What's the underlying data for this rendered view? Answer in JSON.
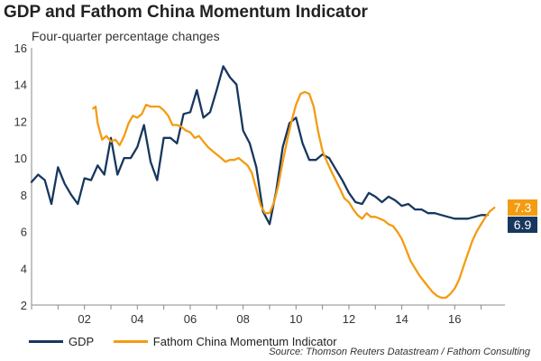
{
  "chart_data": {
    "type": "line",
    "title": "GDP and Fathom China Momentum Indicator",
    "subtitle": "Four-quarter percentage changes",
    "xlim": [
      2000.0,
      2017.9
    ],
    "ylim": [
      2,
      16
    ],
    "x_ticks": [
      {
        "x": 2002.0,
        "label": "02"
      },
      {
        "x": 2004.0,
        "label": "04"
      },
      {
        "x": 2006.0,
        "label": "06"
      },
      {
        "x": 2008.0,
        "label": "08"
      },
      {
        "x": 2010.0,
        "label": "10"
      },
      {
        "x": 2012.0,
        "label": "12"
      },
      {
        "x": 2014.0,
        "label": "14"
      },
      {
        "x": 2016.0,
        "label": "16"
      }
    ],
    "y_ticks": [
      2,
      4,
      6,
      8,
      10,
      12,
      14,
      16
    ],
    "series": [
      {
        "name": "GDP",
        "color": "#17375e",
        "points": [
          [
            2000.0,
            8.7
          ],
          [
            2000.25,
            9.1
          ],
          [
            2000.5,
            8.8
          ],
          [
            2000.75,
            7.5
          ],
          [
            2001.0,
            9.5
          ],
          [
            2001.25,
            8.6
          ],
          [
            2001.5,
            8.0
          ],
          [
            2001.75,
            7.5
          ],
          [
            2002.0,
            8.9
          ],
          [
            2002.25,
            8.8
          ],
          [
            2002.5,
            9.6
          ],
          [
            2002.75,
            9.1
          ],
          [
            2003.0,
            11.1
          ],
          [
            2003.25,
            9.1
          ],
          [
            2003.5,
            10.0
          ],
          [
            2003.75,
            10.0
          ],
          [
            2004.0,
            10.6
          ],
          [
            2004.25,
            11.8
          ],
          [
            2004.5,
            9.8
          ],
          [
            2004.75,
            8.8
          ],
          [
            2005.0,
            11.1
          ],
          [
            2005.25,
            11.1
          ],
          [
            2005.5,
            10.8
          ],
          [
            2005.75,
            12.4
          ],
          [
            2006.0,
            12.5
          ],
          [
            2006.25,
            13.7
          ],
          [
            2006.5,
            12.2
          ],
          [
            2006.75,
            12.5
          ],
          [
            2007.0,
            13.7
          ],
          [
            2007.25,
            15.0
          ],
          [
            2007.5,
            14.4
          ],
          [
            2007.75,
            14.0
          ],
          [
            2008.0,
            11.5
          ],
          [
            2008.25,
            10.8
          ],
          [
            2008.5,
            9.5
          ],
          [
            2008.75,
            7.1
          ],
          [
            2009.0,
            6.4
          ],
          [
            2009.25,
            8.2
          ],
          [
            2009.5,
            10.6
          ],
          [
            2009.75,
            11.9
          ],
          [
            2010.0,
            12.2
          ],
          [
            2010.25,
            10.8
          ],
          [
            2010.5,
            9.9
          ],
          [
            2010.75,
            9.9
          ],
          [
            2011.0,
            10.2
          ],
          [
            2011.25,
            10.0
          ],
          [
            2011.5,
            9.4
          ],
          [
            2011.75,
            8.8
          ],
          [
            2012.0,
            8.1
          ],
          [
            2012.25,
            7.6
          ],
          [
            2012.5,
            7.5
          ],
          [
            2012.75,
            8.1
          ],
          [
            2013.0,
            7.9
          ],
          [
            2013.25,
            7.6
          ],
          [
            2013.5,
            7.9
          ],
          [
            2013.75,
            7.7
          ],
          [
            2014.0,
            7.4
          ],
          [
            2014.25,
            7.5
          ],
          [
            2014.5,
            7.2
          ],
          [
            2014.75,
            7.2
          ],
          [
            2015.0,
            7.0
          ],
          [
            2015.25,
            7.0
          ],
          [
            2015.5,
            6.9
          ],
          [
            2015.75,
            6.8
          ],
          [
            2016.0,
            6.7
          ],
          [
            2016.25,
            6.7
          ],
          [
            2016.5,
            6.7
          ],
          [
            2016.75,
            6.8
          ],
          [
            2017.0,
            6.9
          ],
          [
            2017.25,
            6.9
          ]
        ],
        "end_label": "6.9"
      },
      {
        "name": "Fathom China Momentum Indicator",
        "color": "#f39c12",
        "points": [
          [
            2002.33,
            12.7
          ],
          [
            2002.42,
            12.8
          ],
          [
            2002.5,
            11.9
          ],
          [
            2002.67,
            11.0
          ],
          [
            2002.83,
            11.2
          ],
          [
            2003.0,
            10.9
          ],
          [
            2003.17,
            11.0
          ],
          [
            2003.33,
            10.7
          ],
          [
            2003.5,
            11.2
          ],
          [
            2003.67,
            11.9
          ],
          [
            2003.83,
            12.3
          ],
          [
            2004.0,
            12.2
          ],
          [
            2004.17,
            12.4
          ],
          [
            2004.33,
            12.9
          ],
          [
            2004.5,
            12.8
          ],
          [
            2004.67,
            12.8
          ],
          [
            2004.83,
            12.8
          ],
          [
            2005.0,
            12.6
          ],
          [
            2005.17,
            12.3
          ],
          [
            2005.33,
            11.8
          ],
          [
            2005.5,
            11.8
          ],
          [
            2005.67,
            11.7
          ],
          [
            2005.83,
            11.5
          ],
          [
            2006.0,
            11.4
          ],
          [
            2006.17,
            11.1
          ],
          [
            2006.33,
            11.2
          ],
          [
            2006.5,
            10.9
          ],
          [
            2006.67,
            10.6
          ],
          [
            2006.83,
            10.4
          ],
          [
            2007.0,
            10.2
          ],
          [
            2007.17,
            10.0
          ],
          [
            2007.33,
            9.8
          ],
          [
            2007.5,
            9.9
          ],
          [
            2007.67,
            9.9
          ],
          [
            2007.83,
            10.0
          ],
          [
            2008.0,
            9.8
          ],
          [
            2008.17,
            9.6
          ],
          [
            2008.33,
            9.2
          ],
          [
            2008.5,
            8.3
          ],
          [
            2008.67,
            7.4
          ],
          [
            2008.83,
            7.0
          ],
          [
            2009.0,
            7.0
          ],
          [
            2009.17,
            7.6
          ],
          [
            2009.33,
            8.5
          ],
          [
            2009.5,
            9.8
          ],
          [
            2009.67,
            11.0
          ],
          [
            2009.83,
            12.0
          ],
          [
            2010.0,
            12.9
          ],
          [
            2010.17,
            13.5
          ],
          [
            2010.33,
            13.6
          ],
          [
            2010.5,
            13.5
          ],
          [
            2010.67,
            12.8
          ],
          [
            2010.83,
            11.5
          ],
          [
            2011.0,
            10.4
          ],
          [
            2011.17,
            9.8
          ],
          [
            2011.33,
            9.3
          ],
          [
            2011.5,
            8.8
          ],
          [
            2011.67,
            8.3
          ],
          [
            2011.83,
            7.8
          ],
          [
            2012.0,
            7.6
          ],
          [
            2012.17,
            7.2
          ],
          [
            2012.33,
            6.9
          ],
          [
            2012.5,
            6.7
          ],
          [
            2012.67,
            7.0
          ],
          [
            2012.83,
            6.8
          ],
          [
            2013.0,
            6.8
          ],
          [
            2013.17,
            6.7
          ],
          [
            2013.33,
            6.6
          ],
          [
            2013.5,
            6.4
          ],
          [
            2013.67,
            6.3
          ],
          [
            2013.83,
            6.0
          ],
          [
            2014.0,
            5.6
          ],
          [
            2014.17,
            5.0
          ],
          [
            2014.33,
            4.4
          ],
          [
            2014.5,
            4.0
          ],
          [
            2014.67,
            3.6
          ],
          [
            2014.83,
            3.3
          ],
          [
            2015.0,
            3.0
          ],
          [
            2015.17,
            2.7
          ],
          [
            2015.33,
            2.5
          ],
          [
            2015.5,
            2.4
          ],
          [
            2015.67,
            2.4
          ],
          [
            2015.83,
            2.6
          ],
          [
            2016.0,
            2.9
          ],
          [
            2016.17,
            3.4
          ],
          [
            2016.33,
            4.1
          ],
          [
            2016.5,
            4.8
          ],
          [
            2016.67,
            5.5
          ],
          [
            2016.83,
            6.0
          ],
          [
            2017.0,
            6.4
          ],
          [
            2017.17,
            6.8
          ],
          [
            2017.33,
            7.1
          ],
          [
            2017.5,
            7.3
          ]
        ],
        "end_label": "7.3"
      }
    ],
    "legend_position": "bottom-left",
    "source": "Source: Thomson Reuters Datastream / Fathom Consulting"
  }
}
